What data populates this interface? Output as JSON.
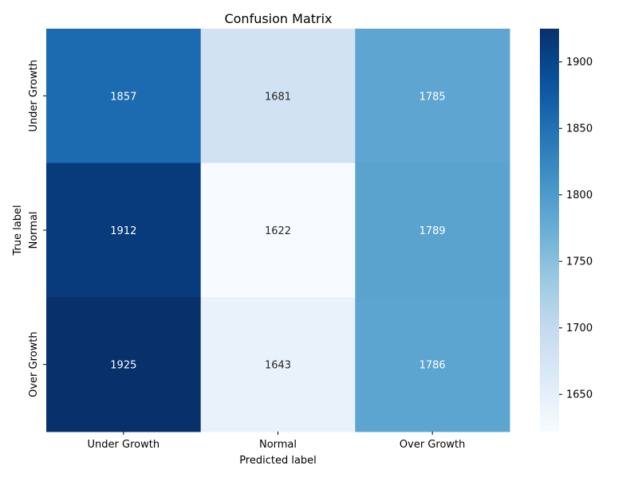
{
  "chart_data": {
    "type": "heatmap",
    "title": "Confusion Matrix",
    "xlabel": "Predicted label",
    "ylabel": "True label",
    "x_categories": [
      "Under Growth",
      "Normal",
      "Over Growth"
    ],
    "y_categories": [
      "Under Growth",
      "Normal",
      "Over Growth"
    ],
    "values": [
      [
        1857,
        1681,
        1785
      ],
      [
        1912,
        1622,
        1789
      ],
      [
        1925,
        1643,
        1786
      ]
    ],
    "colormap": "Blues",
    "colorbar": {
      "min": 1622,
      "max": 1925,
      "ticks": [
        1650,
        1700,
        1750,
        1800,
        1850,
        1900
      ]
    },
    "colors": {
      "low": "#f7fbff",
      "high": "#08306b",
      "text_dark": "#262626",
      "text_light": "#ffffff"
    }
  }
}
